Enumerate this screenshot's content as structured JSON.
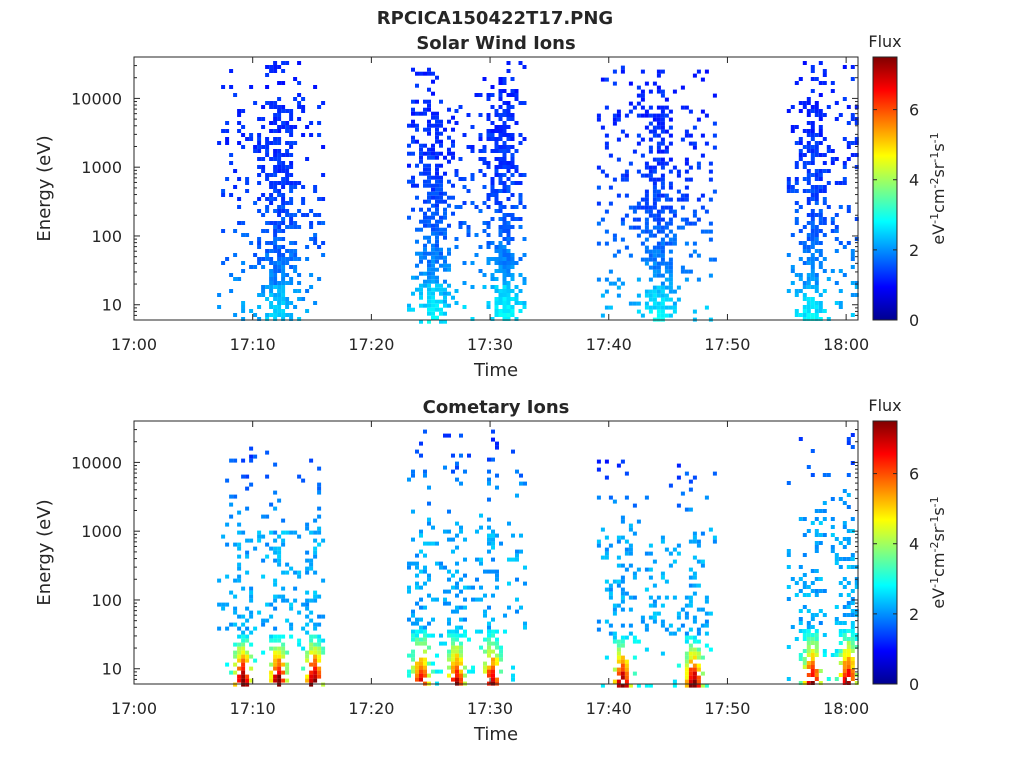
{
  "figure_title": "RPCICA150422T17.PNG",
  "colormap": [
    "#00008f",
    "#0000ff",
    "#0080ff",
    "#00ffff",
    "#80ff80",
    "#ffff00",
    "#ff8000",
    "#ff0000",
    "#800000"
  ],
  "chart_data": [
    {
      "type": "heatmap",
      "title": "Solar Wind Ions",
      "xlabel": "Time",
      "ylabel": "Energy (eV)",
      "yscale": "log",
      "xlim": [
        "17:00",
        "18:01"
      ],
      "ylim": [
        6,
        40000
      ],
      "xticks": [
        "17:00",
        "17:10",
        "17:20",
        "17:30",
        "17:40",
        "17:50",
        "18:00"
      ],
      "yticks": [
        {
          "value": 10,
          "label": "10"
        },
        {
          "value": 100,
          "label": "100"
        },
        {
          "value": 1000,
          "label": "1000"
        },
        {
          "value": 10000,
          "label": "10000"
        }
      ],
      "colorbar": {
        "title": "Flux",
        "label": "eV-1cm-2sr-1s-1",
        "range": [
          0,
          7.5
        ],
        "ticks": [
          "0",
          "2",
          "4",
          "6"
        ]
      },
      "bursts": [
        {
          "start": "17:07",
          "end": "17:16",
          "peak": "17:12",
          "emin": 6,
          "emax": 35000,
          "flux_low": 2.3,
          "flux_high": 1.2
        },
        {
          "start": "17:23",
          "end": "17:27",
          "peak": "17:25",
          "emin": 6,
          "emax": 28000,
          "flux_low": 2.5,
          "flux_high": 1.2
        },
        {
          "start": "17:27",
          "end": "17:33",
          "peak": "17:31",
          "emin": 6,
          "emax": 35000,
          "flux_low": 2.6,
          "flux_high": 1.2
        },
        {
          "start": "17:39",
          "end": "17:49",
          "peak": "17:44",
          "emin": 6,
          "emax": 30000,
          "flux_low": 2.5,
          "flux_high": 1.2
        },
        {
          "start": "17:55",
          "end": "18:01",
          "peak": "17:57",
          "emin": 6,
          "emax": 35000,
          "flux_low": 2.5,
          "flux_high": 1.2
        }
      ]
    },
    {
      "type": "heatmap",
      "title": "Cometary Ions",
      "xlabel": "Time",
      "ylabel": "Energy (eV)",
      "yscale": "log",
      "xlim": [
        "17:00",
        "18:01"
      ],
      "ylim": [
        6,
        40000
      ],
      "xticks": [
        "17:00",
        "17:10",
        "17:20",
        "17:30",
        "17:40",
        "17:50",
        "18:00"
      ],
      "yticks": [
        {
          "value": 10,
          "label": "10"
        },
        {
          "value": 100,
          "label": "100"
        },
        {
          "value": 1000,
          "label": "1000"
        },
        {
          "value": 10000,
          "label": "10000"
        }
      ],
      "colorbar": {
        "title": "Flux",
        "label": "eV-1cm-2sr-1s-1",
        "range": [
          0,
          7.5
        ],
        "ticks": [
          "0",
          "2",
          "4",
          "6"
        ]
      },
      "bursts": [
        {
          "start": "17:07",
          "end": "17:16",
          "peaks": [
            "17:09",
            "17:12",
            "17:15"
          ],
          "emin": 6,
          "emax": 17000,
          "flux_peak": 7.0
        },
        {
          "start": "17:23",
          "end": "17:33",
          "peaks": [
            "17:24",
            "17:27",
            "17:30"
          ],
          "emin": 6,
          "emax": 30000,
          "flux_peak": 6.3
        },
        {
          "start": "17:39",
          "end": "17:49",
          "peaks": [
            "17:41",
            "17:47"
          ],
          "emin": 6,
          "emax": 11000,
          "flux_peak": 6.8
        },
        {
          "start": "17:55",
          "end": "18:01",
          "peaks": [
            "17:57",
            "18:00"
          ],
          "emin": 6,
          "emax": 35000,
          "flux_peak": 6.5
        }
      ]
    }
  ]
}
